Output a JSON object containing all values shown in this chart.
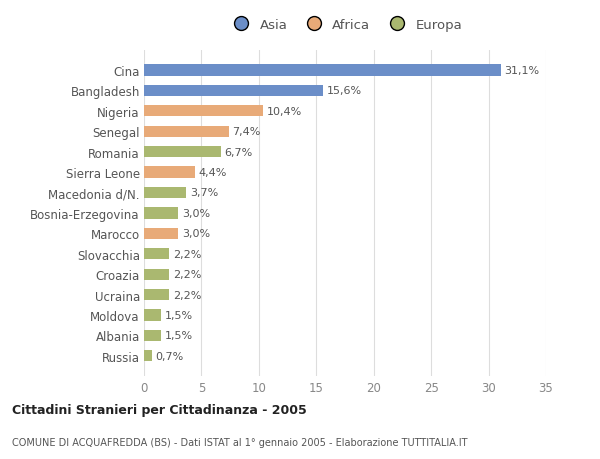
{
  "categories": [
    "Cina",
    "Bangladesh",
    "Nigeria",
    "Senegal",
    "Romania",
    "Sierra Leone",
    "Macedonia d/N.",
    "Bosnia-Erzegovina",
    "Marocco",
    "Slovacchia",
    "Croazia",
    "Ucraina",
    "Moldova",
    "Albania",
    "Russia"
  ],
  "values": [
    31.1,
    15.6,
    10.4,
    7.4,
    6.7,
    4.4,
    3.7,
    3.0,
    3.0,
    2.2,
    2.2,
    2.2,
    1.5,
    1.5,
    0.7
  ],
  "labels": [
    "31,1%",
    "15,6%",
    "10,4%",
    "7,4%",
    "6,7%",
    "4,4%",
    "3,7%",
    "3,0%",
    "3,0%",
    "2,2%",
    "2,2%",
    "2,2%",
    "1,5%",
    "1,5%",
    "0,7%"
  ],
  "continents": [
    "Asia",
    "Asia",
    "Africa",
    "Africa",
    "Europa",
    "Africa",
    "Europa",
    "Europa",
    "Africa",
    "Europa",
    "Europa",
    "Europa",
    "Europa",
    "Europa",
    "Europa"
  ],
  "colors": {
    "Asia": "#6b8ec8",
    "Africa": "#e8aa78",
    "Europa": "#aab870"
  },
  "background_color": "#ffffff",
  "plot_bg_color": "#ffffff",
  "title": "Cittadini Stranieri per Cittadinanza - 2005",
  "subtitle": "COMUNE DI ACQUAFREDDA (BS) - Dati ISTAT al 1° gennaio 2005 - Elaborazione TUTTITALIA.IT",
  "xlim": [
    0,
    35
  ],
  "xticks": [
    0,
    5,
    10,
    15,
    20,
    25,
    30,
    35
  ],
  "bar_height": 0.55,
  "figsize": [
    6.0,
    4.6
  ],
  "dpi": 100,
  "grid_color": "#dddddd",
  "label_color": "#555555",
  "tick_color": "#888888"
}
